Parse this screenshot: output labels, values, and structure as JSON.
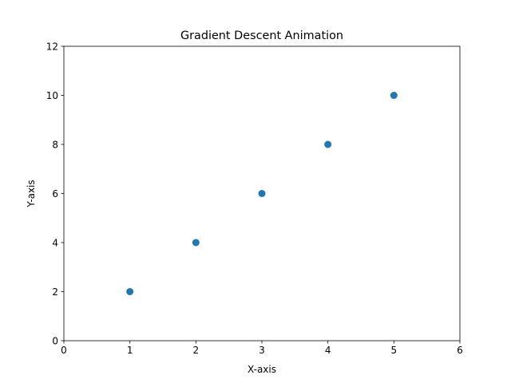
{
  "chart_data": {
    "type": "scatter",
    "title": "Gradient Descent Animation",
    "xlabel": "X-axis",
    "ylabel": "Y-axis",
    "xlim": [
      0,
      6
    ],
    "ylim": [
      0,
      12
    ],
    "xticks": [
      0,
      1,
      2,
      3,
      4,
      5,
      6
    ],
    "yticks": [
      0,
      2,
      4,
      6,
      8,
      10,
      12
    ],
    "grid": false,
    "series": [
      {
        "x": [
          1,
          2,
          3,
          4,
          5
        ],
        "y": [
          2,
          4,
          6,
          8,
          10
        ],
        "color": "#1f77b4"
      }
    ]
  }
}
